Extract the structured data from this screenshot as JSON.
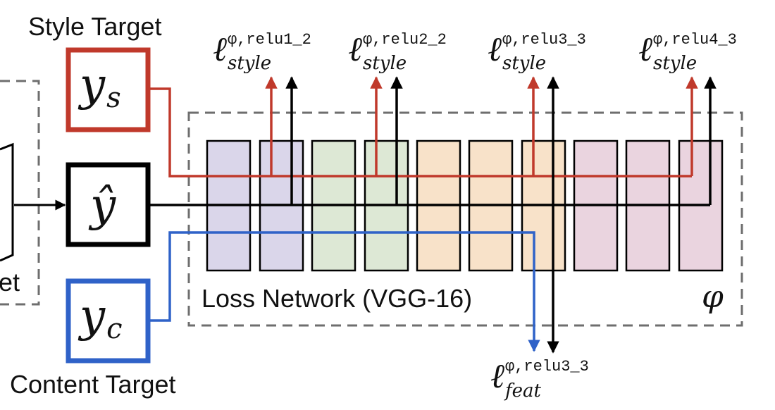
{
  "labels": {
    "style_target": "Style Target",
    "content_target": "Content Target",
    "loss_network": "Loss Network (VGG-16)",
    "partial_left": "et",
    "phi": "φ"
  },
  "nodes": {
    "y_s": {
      "base": "y",
      "sub": "s"
    },
    "y_hat": {
      "base": "ŷ"
    },
    "y_c": {
      "base": "y",
      "sub": "c"
    }
  },
  "losses": {
    "style": [
      {
        "ell": "ℓ",
        "sup": "φ,relu1_2",
        "sub": "style"
      },
      {
        "ell": "ℓ",
        "sup": "φ,relu2_2",
        "sub": "style"
      },
      {
        "ell": "ℓ",
        "sup": "φ,relu3_3",
        "sub": "style"
      },
      {
        "ell": "ℓ",
        "sup": "φ,relu4_3",
        "sub": "style"
      }
    ],
    "feat": {
      "ell": "ℓ",
      "sup": "φ,relu3_3",
      "sub": "feat"
    }
  },
  "colors": {
    "style_line": "#c0392b",
    "content_line": "#2f62c8",
    "black_line": "#000000",
    "dashed": "#6e6e6e",
    "layer_purple": "#dad6ea",
    "layer_green": "#dde8d5",
    "layer_orange": "#f8e2c9",
    "layer_pink": "#ead4df"
  }
}
